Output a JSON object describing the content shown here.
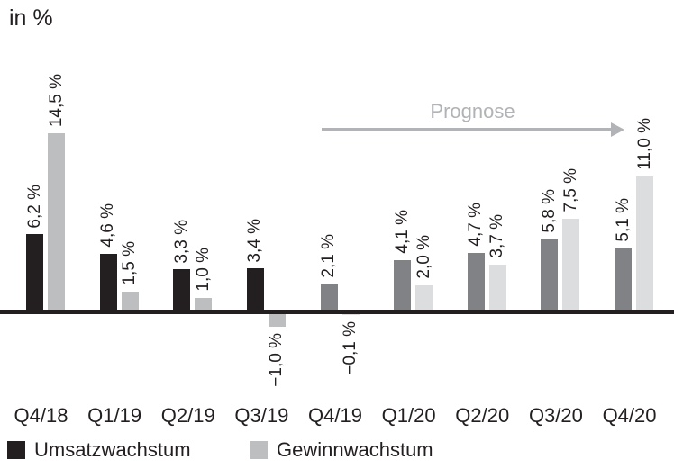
{
  "chart_data": {
    "type": "bar",
    "title": "in %",
    "categories": [
      "Q4/18",
      "Q1/19",
      "Q2/19",
      "Q3/19",
      "Q4/19",
      "Q1/20",
      "Q2/20",
      "Q3/20",
      "Q4/20"
    ],
    "series": [
      {
        "name": "Umsatzwachstum",
        "values": [
          6.2,
          4.6,
          3.3,
          3.4,
          2.1,
          4.1,
          4.7,
          5.8,
          5.1
        ],
        "labels": [
          "6,2 %",
          "4,6 %",
          "3,3 %",
          "3,4 %",
          "2,1 %",
          "4,1 %",
          "4,7 %",
          "5,8 %",
          "5,1 %"
        ],
        "color_actual": "#231f20",
        "color_forecast": "#808285"
      },
      {
        "name": "Gewinnwachstum",
        "values": [
          14.5,
          1.5,
          1.0,
          -1.0,
          -0.1,
          2.0,
          3.7,
          7.5,
          11.0
        ],
        "labels": [
          "14,5 %",
          "1,5 %",
          "1,0 %",
          "−1,0 %",
          "−0,1 %",
          "2,0 %",
          "3,7 %",
          "7,5 %",
          "11,0 %"
        ],
        "color_actual": "#bcbec0",
        "color_forecast": "#dcddde"
      }
    ],
    "forecast_start_index": 4,
    "forecast_annotation": "Prognose",
    "annotation_color": "#b1b3b6",
    "axis_color": "#231f20",
    "text_color": "#231f20",
    "ylabel": "in %",
    "xlabel": "",
    "ylim": [
      -2,
      15
    ],
    "grid": false,
    "legend_position": "bottom"
  }
}
